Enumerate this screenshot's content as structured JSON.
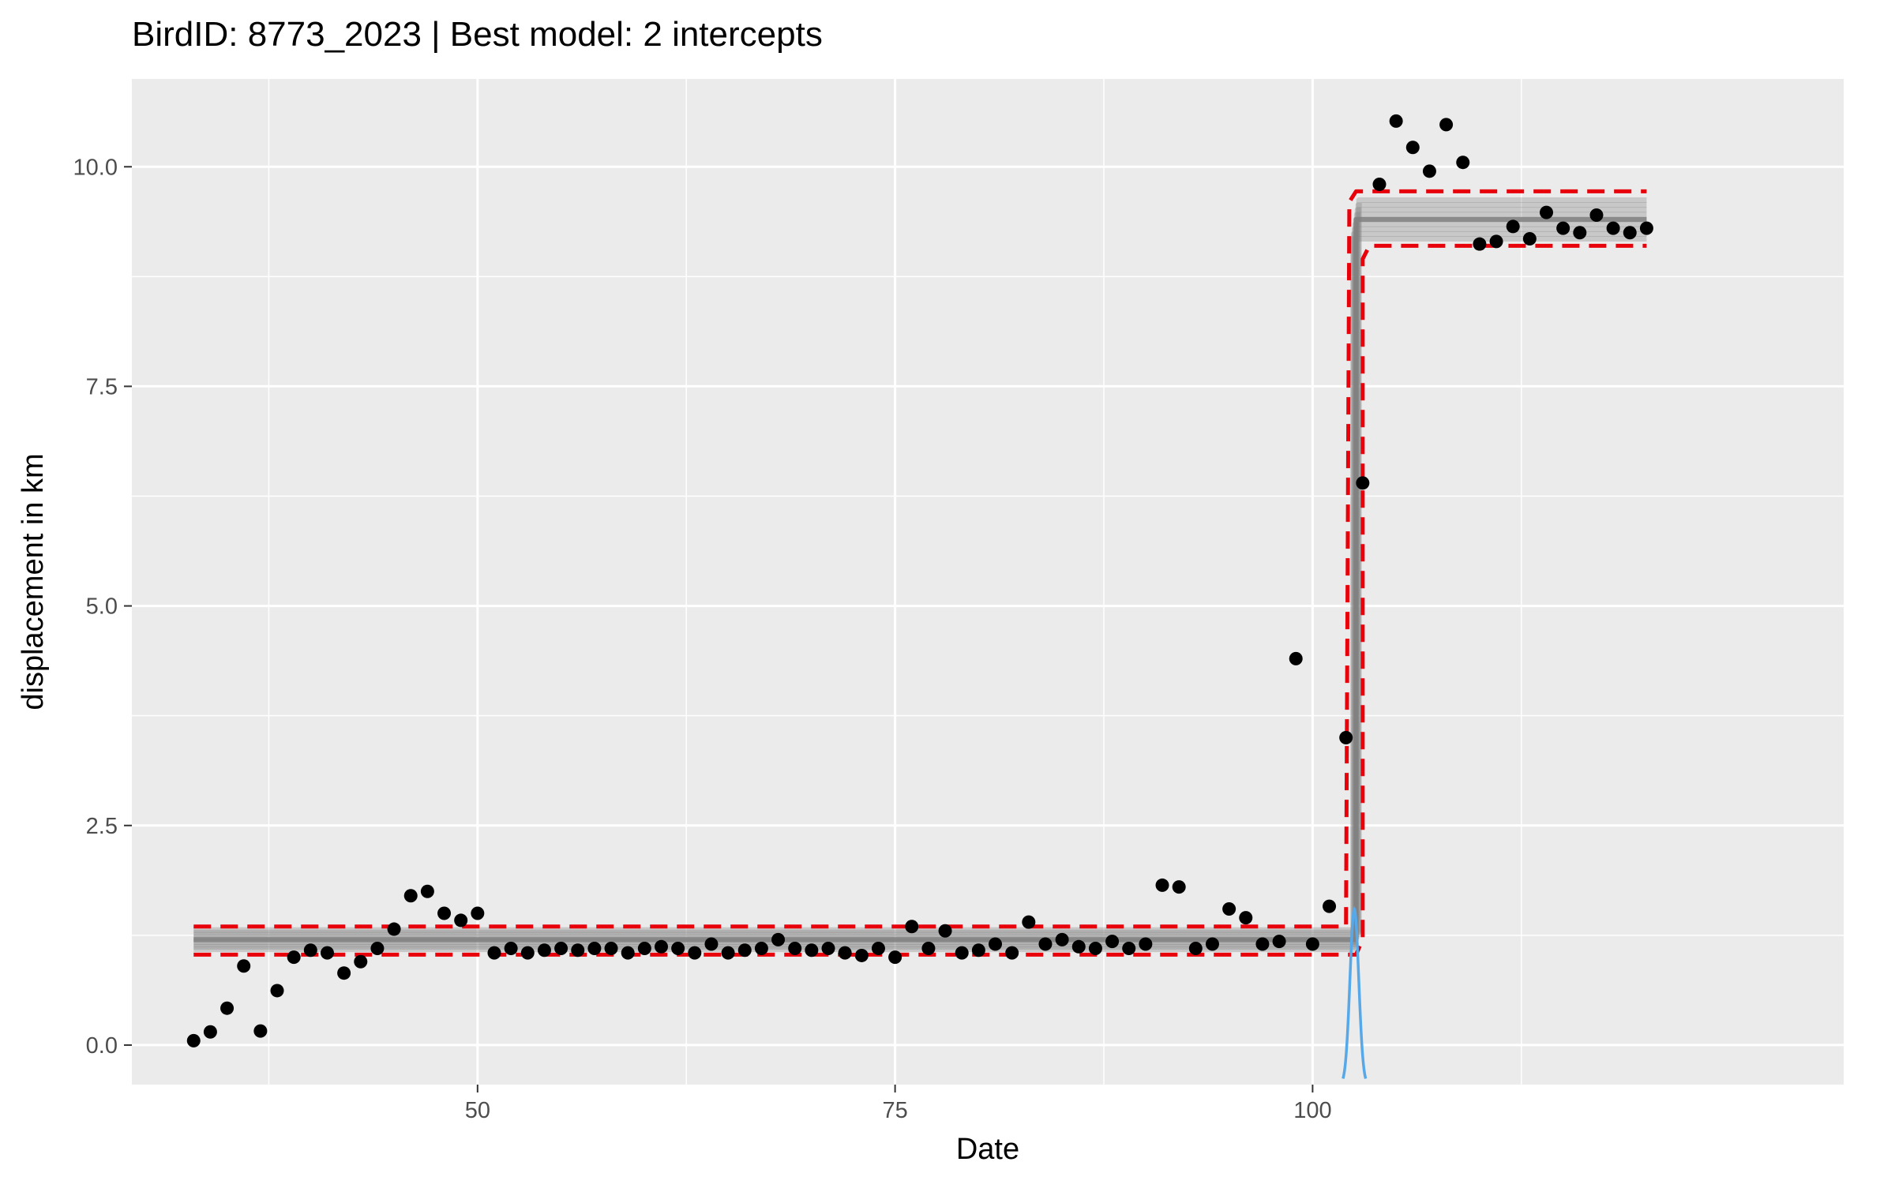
{
  "chart_data": {
    "type": "scatter",
    "title": "BirdID: 8773_2023 | Best model: 2 intercepts",
    "xlabel": "Date",
    "ylabel": "displacement in km",
    "xlim": [
      29.3,
      131.8
    ],
    "ylim": [
      -0.45,
      11.0
    ],
    "x_ticks": [
      50,
      75,
      100
    ],
    "x_tick_labels": [
      "50",
      "75",
      "100"
    ],
    "y_ticks": [
      0.0,
      2.5,
      5.0,
      7.5,
      10.0
    ],
    "y_tick_labels": [
      "0.0",
      "2.5",
      "5.0",
      "7.5",
      "10.0"
    ],
    "grid": true,
    "colors": {
      "panel_background": "#EBEBEB",
      "grid_line": "#FFFFFF",
      "points": "#000000",
      "model_fit": "#808080",
      "model_bounds": "#E8000B",
      "switch_density": "#56A8E8"
    },
    "series": [
      {
        "kind": "points",
        "points": [
          [
            33,
            0.05
          ],
          [
            34,
            0.15
          ],
          [
            35,
            0.42
          ],
          [
            36,
            0.9
          ],
          [
            37,
            0.16
          ],
          [
            38,
            0.62
          ],
          [
            39,
            1.0
          ],
          [
            40,
            1.08
          ],
          [
            41,
            1.05
          ],
          [
            42,
            0.82
          ],
          [
            43,
            0.95
          ],
          [
            44,
            1.1
          ],
          [
            45,
            1.32
          ],
          [
            46,
            1.7
          ],
          [
            47,
            1.75
          ],
          [
            48,
            1.5
          ],
          [
            49,
            1.42
          ],
          [
            50,
            1.5
          ],
          [
            51,
            1.05
          ],
          [
            52,
            1.1
          ],
          [
            53,
            1.05
          ],
          [
            54,
            1.08
          ],
          [
            55,
            1.1
          ],
          [
            56,
            1.08
          ],
          [
            57,
            1.1
          ],
          [
            58,
            1.1
          ],
          [
            59,
            1.05
          ],
          [
            60,
            1.1
          ],
          [
            61,
            1.12
          ],
          [
            62,
            1.1
          ],
          [
            63,
            1.05
          ],
          [
            64,
            1.15
          ],
          [
            65,
            1.05
          ],
          [
            66,
            1.08
          ],
          [
            67,
            1.1
          ],
          [
            68,
            1.2
          ],
          [
            69,
            1.1
          ],
          [
            70,
            1.08
          ],
          [
            71,
            1.1
          ],
          [
            72,
            1.05
          ],
          [
            73,
            1.02
          ],
          [
            74,
            1.1
          ],
          [
            75,
            1.0
          ],
          [
            76,
            1.35
          ],
          [
            77,
            1.1
          ],
          [
            78,
            1.3
          ],
          [
            79,
            1.05
          ],
          [
            80,
            1.08
          ],
          [
            81,
            1.15
          ],
          [
            82,
            1.05
          ],
          [
            83,
            1.4
          ],
          [
            84,
            1.15
          ],
          [
            85,
            1.2
          ],
          [
            86,
            1.12
          ],
          [
            87,
            1.1
          ],
          [
            88,
            1.18
          ],
          [
            89,
            1.1
          ],
          [
            90,
            1.15
          ],
          [
            91,
            1.82
          ],
          [
            92,
            1.8
          ],
          [
            93,
            1.1
          ],
          [
            94,
            1.15
          ],
          [
            95,
            1.55
          ],
          [
            96,
            1.45
          ],
          [
            97,
            1.15
          ],
          [
            98,
            1.18
          ],
          [
            99,
            4.4
          ],
          [
            100,
            1.15
          ],
          [
            101,
            1.58
          ],
          [
            102,
            3.5
          ],
          [
            103,
            6.4
          ],
          [
            104,
            9.8
          ],
          [
            105,
            10.52
          ],
          [
            106,
            10.22
          ],
          [
            107,
            9.95
          ],
          [
            108,
            10.48
          ],
          [
            109,
            10.05
          ],
          [
            110,
            9.12
          ],
          [
            111,
            9.15
          ],
          [
            112,
            9.32
          ],
          [
            113,
            9.18
          ],
          [
            114,
            9.48
          ],
          [
            115,
            9.3
          ],
          [
            116,
            9.25
          ],
          [
            117,
            9.45
          ],
          [
            118,
            9.3
          ],
          [
            119,
            9.25
          ],
          [
            120,
            9.3
          ]
        ]
      },
      {
        "kind": "model_fit",
        "start": 33,
        "end": 120,
        "change_point": 102.6,
        "level_before": 1.2,
        "level_after": 9.4,
        "spread_before": 0.11,
        "spread_after": 0.22
      },
      {
        "kind": "model_bounds_upper",
        "points": [
          [
            33,
            1.35
          ],
          [
            102,
            1.35
          ],
          [
            102.2,
            9.6
          ],
          [
            102.6,
            9.72
          ],
          [
            120,
            9.72
          ]
        ]
      },
      {
        "kind": "model_bounds_lower",
        "points": [
          [
            33,
            1.03
          ],
          [
            102.6,
            1.03
          ],
          [
            103.0,
            1.2
          ],
          [
            103.0,
            8.95
          ],
          [
            103.4,
            9.1
          ],
          [
            120,
            9.1
          ]
        ]
      },
      {
        "kind": "switch_density",
        "center": 102.5,
        "peak": 1.55,
        "half_width": 0.68
      }
    ]
  }
}
